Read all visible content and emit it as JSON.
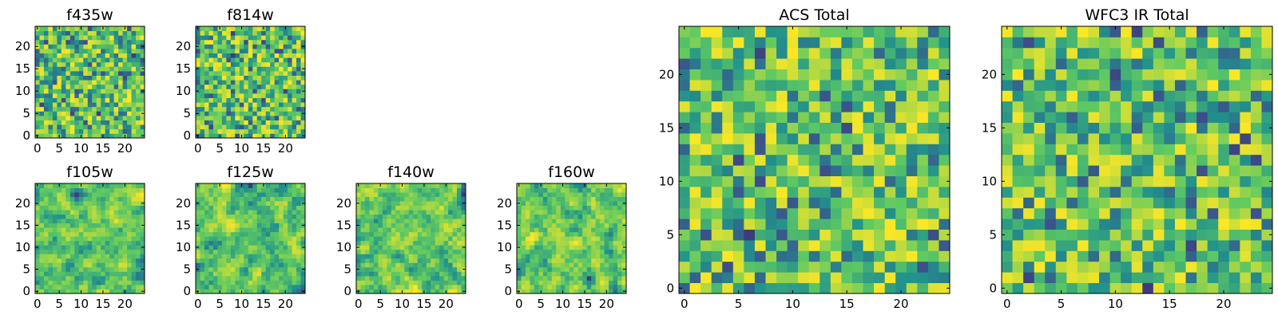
{
  "chart_data": [
    {
      "type": "heatmap",
      "title": "f435w",
      "grid_size": 25,
      "colormap": "viridis",
      "x_ticks": [
        "0",
        "5",
        "10",
        "15",
        "20"
      ],
      "y_ticks": [
        "0",
        "5",
        "10",
        "15",
        "20"
      ],
      "seed": 11,
      "smooth": 0
    },
    {
      "type": "heatmap",
      "title": "f814w",
      "grid_size": 25,
      "colormap": "viridis",
      "x_ticks": [
        "0",
        "5",
        "10",
        "15",
        "20"
      ],
      "y_ticks": [
        "0",
        "5",
        "10",
        "15",
        "20"
      ],
      "seed": 23,
      "smooth": 0
    },
    {
      "type": "heatmap",
      "title": "f105w",
      "grid_size": 25,
      "colormap": "viridis",
      "x_ticks": [
        "0",
        "5",
        "10",
        "15",
        "20"
      ],
      "y_ticks": [
        "0",
        "5",
        "10",
        "15",
        "20"
      ],
      "seed": 37,
      "smooth": 1
    },
    {
      "type": "heatmap",
      "title": "f125w",
      "grid_size": 25,
      "colormap": "viridis",
      "x_ticks": [
        "0",
        "5",
        "10",
        "15",
        "20"
      ],
      "y_ticks": [
        "0",
        "5",
        "10",
        "15",
        "20"
      ],
      "seed": 41,
      "smooth": 1
    },
    {
      "type": "heatmap",
      "title": "f140w",
      "grid_size": 25,
      "colormap": "viridis",
      "x_ticks": [
        "0",
        "5",
        "10",
        "15",
        "20"
      ],
      "y_ticks": [
        "0",
        "5",
        "10",
        "15",
        "20"
      ],
      "seed": 53,
      "smooth": 1
    },
    {
      "type": "heatmap",
      "title": "f160w",
      "grid_size": 25,
      "colormap": "viridis",
      "x_ticks": [
        "0",
        "5",
        "10",
        "15",
        "20"
      ],
      "y_ticks": [
        "0",
        "5",
        "10",
        "15",
        "20"
      ],
      "seed": 67,
      "smooth": 1
    },
    {
      "type": "heatmap",
      "title": "ACS Total",
      "grid_size": 25,
      "colormap": "viridis",
      "x_ticks": [
        "0",
        "5",
        "10",
        "15",
        "20"
      ],
      "y_ticks": [
        "0",
        "5",
        "10",
        "15",
        "20"
      ],
      "seed": 79,
      "smooth": 0
    },
    {
      "type": "heatmap",
      "title": "WFC3 IR Total",
      "grid_size": 25,
      "colormap": "viridis",
      "x_ticks": [
        "0",
        "5",
        "10",
        "15",
        "20"
      ],
      "y_ticks": [
        "0",
        "5",
        "10",
        "15",
        "20"
      ],
      "seed": 97,
      "smooth": 0
    }
  ]
}
